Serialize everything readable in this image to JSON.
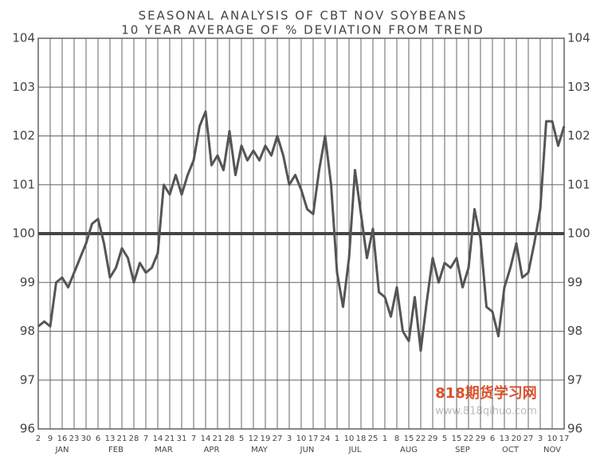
{
  "chart_data": {
    "type": "line",
    "title": "SEASONAL ANALYSIS OF CBT  NOV SOYBEANS",
    "subtitle": "10 YEAR AVERAGE OF % DEVIATION FROM TREND",
    "categories": [
      "2",
      null,
      "9",
      null,
      "16",
      null,
      "23",
      null,
      "30",
      null,
      "6",
      null,
      "13",
      null,
      "21",
      null,
      "28",
      null,
      "7",
      null,
      "14",
      null,
      "21",
      null,
      "31",
      null,
      "7",
      null,
      "14",
      null,
      "21",
      null,
      "28",
      null,
      "5",
      null,
      "12",
      null,
      "19",
      null,
      "27",
      null,
      "3",
      null,
      "10",
      null,
      "17",
      null,
      "24",
      null,
      "1",
      null,
      "10",
      null,
      "18",
      null,
      "25",
      null,
      "1",
      null,
      "8",
      null,
      "15",
      null,
      "22",
      null,
      "29",
      null,
      "5",
      null,
      "15",
      null,
      "22",
      null,
      "29",
      null,
      "6",
      null,
      "13",
      null,
      "20",
      null,
      "27",
      null,
      "3",
      null,
      "10",
      null,
      "17"
    ],
    "months": [
      "JAN",
      "FEB",
      "MAR",
      "APR",
      "MAY",
      "JUN",
      "JUL",
      "AUG",
      "SEP",
      "OCT",
      "NOV"
    ],
    "values": [
      98.1,
      98.2,
      98.1,
      99.0,
      99.1,
      98.9,
      99.2,
      99.5,
      99.8,
      100.2,
      100.3,
      99.8,
      99.1,
      99.3,
      99.7,
      99.5,
      99.0,
      99.4,
      99.2,
      99.3,
      99.6,
      101.0,
      100.8,
      101.2,
      100.8,
      101.2,
      101.5,
      102.2,
      102.5,
      101.4,
      101.6,
      101.3,
      102.1,
      101.2,
      101.8,
      101.5,
      101.7,
      101.5,
      101.8,
      101.6,
      102.0,
      101.6,
      101.0,
      101.2,
      100.9,
      100.5,
      100.4,
      101.3,
      102.0,
      101.0,
      99.2,
      98.5,
      99.5,
      101.3,
      100.4,
      99.5,
      100.1,
      98.8,
      98.7,
      98.3,
      98.9,
      98.0,
      97.8,
      98.7,
      97.6,
      98.6,
      99.5,
      99.0,
      99.4,
      99.3,
      99.5,
      98.9,
      99.3,
      100.5,
      99.9,
      98.5,
      98.4,
      97.9,
      98.9,
      99.3,
      99.8,
      99.1,
      99.2,
      99.8,
      100.5,
      102.3,
      102.3,
      101.8,
      102.2
    ],
    "color": "#555555",
    "reference_line": 100,
    "ylim": [
      96,
      104
    ],
    "yticks": [
      96,
      97,
      98,
      99,
      100,
      101,
      102,
      103,
      104
    ],
    "grid": true,
    "watermark": "818期货学习网",
    "watermark_url": "www.818qihuo.com"
  }
}
